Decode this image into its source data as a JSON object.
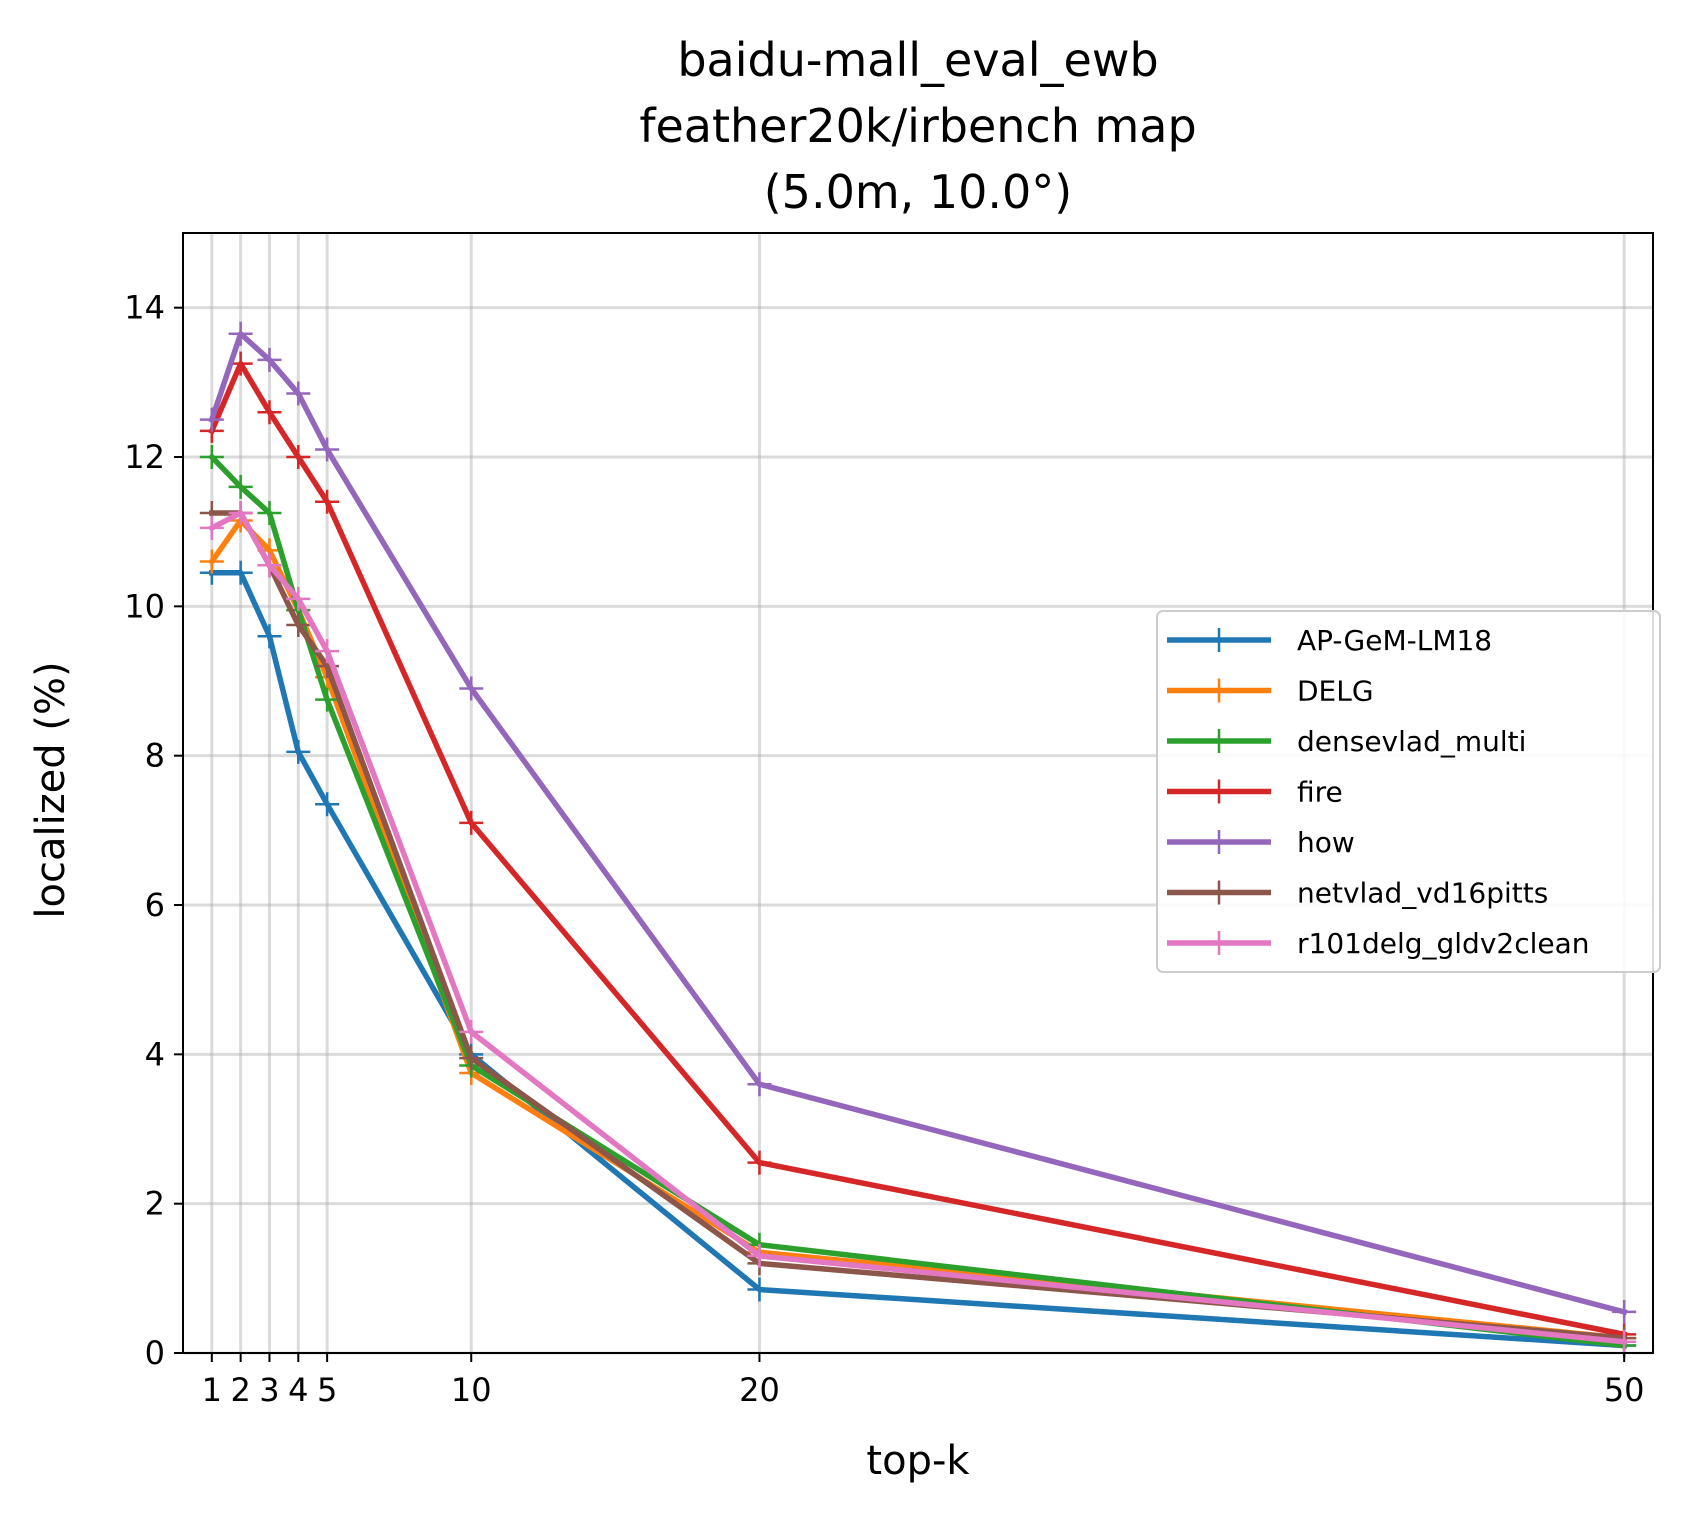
{
  "chart_data": {
    "type": "line",
    "title": [
      "baidu-mall_eval_ewb",
      "feather20k/irbench map",
      "(5.0m, 10.0°)"
    ],
    "xlabel": "top-k",
    "ylabel": "localized (%)",
    "x": [
      1,
      2,
      3,
      4,
      5,
      10,
      20,
      50
    ],
    "xticks": [
      "1",
      "2",
      "3",
      "4",
      "5",
      "10",
      "20",
      "50"
    ],
    "yticks": [
      "0",
      "2",
      "4",
      "6",
      "8",
      "10",
      "12",
      "14"
    ],
    "xlim": [
      0,
      51
    ],
    "ylim": [
      0,
      15
    ],
    "grid": true,
    "legend_position": "center-right",
    "series": [
      {
        "name": "AP-GeM-LM18",
        "color": "#1f77b4",
        "values": [
          10.45,
          10.45,
          9.6,
          8.05,
          7.35,
          4.0,
          0.85,
          0.1
        ]
      },
      {
        "name": "DELG",
        "color": "#ff7f0e",
        "values": [
          10.6,
          11.15,
          10.75,
          9.95,
          9.05,
          3.75,
          1.35,
          0.2
        ]
      },
      {
        "name": "densevlad_multi",
        "color": "#2ca02c",
        "values": [
          12.0,
          11.6,
          11.25,
          9.95,
          8.75,
          3.85,
          1.45,
          0.1
        ]
      },
      {
        "name": "fire",
        "color": "#d62728",
        "values": [
          12.35,
          13.25,
          12.6,
          12.0,
          11.4,
          7.1,
          2.55,
          0.25
        ]
      },
      {
        "name": "how",
        "color": "#9467bd",
        "values": [
          12.5,
          13.65,
          13.3,
          12.85,
          12.1,
          8.9,
          3.6,
          0.55
        ]
      },
      {
        "name": "netvlad_vd16pitts",
        "color": "#8c564b",
        "values": [
          11.25,
          11.25,
          10.55,
          9.75,
          9.2,
          3.95,
          1.2,
          0.2
        ]
      },
      {
        "name": "r101delg_gldv2clean",
        "color": "#e377c2",
        "values": [
          11.05,
          11.25,
          10.55,
          10.1,
          9.4,
          4.3,
          1.3,
          0.15
        ]
      }
    ]
  }
}
